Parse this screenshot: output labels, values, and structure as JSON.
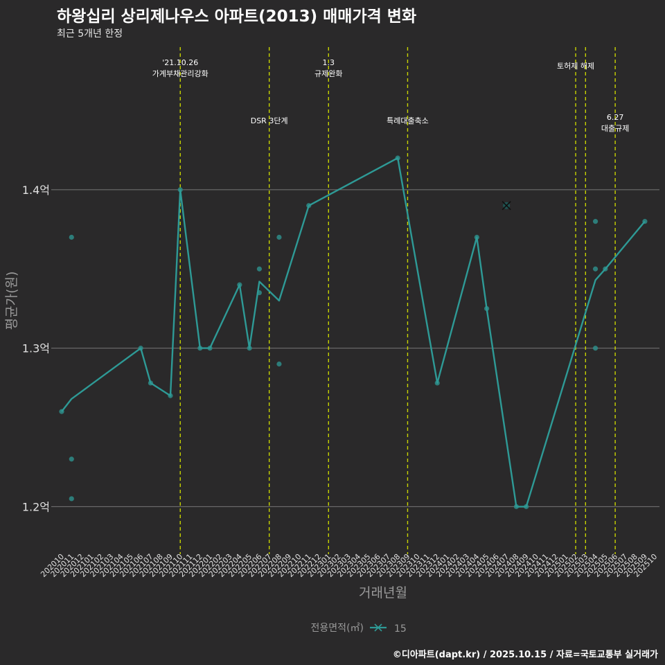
{
  "title": "하왕십리 상리제나우스 아파트(2013) 매매가격 변화",
  "subtitle": "최근 5개년 한정",
  "caption": "©디아파트(dapt.kr) / 2025.10.15 / 자료=국토교통부 실거래가",
  "colors": {
    "background": "#2a292a",
    "line": "#2e9a96",
    "point": "#2e8c88",
    "event_line": "#c8d400",
    "grid": "#777777",
    "text": "#e0e0e0",
    "axis_title": "#9a9a9a"
  },
  "chart_data": {
    "type": "line",
    "title": "하왕십리 상리제나우스 아파트(2013) 매매가격 변화",
    "xlabel": "거래년월",
    "ylabel": "평균가(원)",
    "categories": [
      "202010",
      "202011",
      "202012",
      "202101",
      "202102",
      "202103",
      "202104",
      "202105",
      "202106",
      "202107",
      "202108",
      "202109",
      "202110",
      "202111",
      "202112",
      "202201",
      "202202",
      "202203",
      "202204",
      "202205",
      "202206",
      "202207",
      "202208",
      "202209",
      "202210",
      "202211",
      "202212",
      "202301",
      "202302",
      "202303",
      "202304",
      "202305",
      "202306",
      "202307",
      "202308",
      "202309",
      "202310",
      "202311",
      "202312",
      "202401",
      "202402",
      "202403",
      "202404",
      "202405",
      "202406",
      "202407",
      "202408",
      "202409",
      "202410",
      "202411",
      "202412",
      "202501",
      "202502",
      "202503",
      "202504",
      "202505",
      "202506",
      "202507",
      "202508",
      "202509",
      "202510"
    ],
    "ylim": [
      1.17,
      1.49
    ],
    "yticks": [
      1.2,
      1.3,
      1.4
    ],
    "ytick_labels": [
      "1.2억",
      "1.3억",
      "1.4억"
    ],
    "series": [
      {
        "name": "15",
        "line_points": [
          {
            "x": "202010",
            "y": 1.26
          },
          {
            "x": "202011",
            "y": 1.268
          },
          {
            "x": "202106",
            "y": 1.3
          },
          {
            "x": "202107",
            "y": 1.278
          },
          {
            "x": "202109",
            "y": 1.27
          },
          {
            "x": "202110",
            "y": 1.4
          },
          {
            "x": "202112",
            "y": 1.3
          },
          {
            "x": "202201",
            "y": 1.3
          },
          {
            "x": "202204",
            "y": 1.34
          },
          {
            "x": "202205",
            "y": 1.3
          },
          {
            "x": "202206",
            "y": 1.342
          },
          {
            "x": "202208",
            "y": 1.33
          },
          {
            "x": "202211",
            "y": 1.39
          },
          {
            "x": "202308",
            "y": 1.42
          },
          {
            "x": "202312",
            "y": 1.278
          },
          {
            "x": "202404",
            "y": 1.37
          },
          {
            "x": "202405",
            "y": 1.325
          },
          {
            "x": "202408",
            "y": 1.2
          },
          {
            "x": "202409",
            "y": 1.2
          },
          {
            "x": "202504",
            "y": 1.343
          },
          {
            "x": "202505",
            "y": 1.35
          },
          {
            "x": "202509",
            "y": 1.38
          }
        ],
        "scatter_points": [
          {
            "x": "202010",
            "y": 1.26
          },
          {
            "x": "202011",
            "y": 1.37
          },
          {
            "x": "202011",
            "y": 1.23
          },
          {
            "x": "202011",
            "y": 1.205
          },
          {
            "x": "202106",
            "y": 1.3
          },
          {
            "x": "202107",
            "y": 1.278
          },
          {
            "x": "202109",
            "y": 1.27
          },
          {
            "x": "202110",
            "y": 1.4
          },
          {
            "x": "202112",
            "y": 1.3
          },
          {
            "x": "202201",
            "y": 1.3
          },
          {
            "x": "202204",
            "y": 1.34
          },
          {
            "x": "202205",
            "y": 1.3
          },
          {
            "x": "202206",
            "y": 1.35
          },
          {
            "x": "202206",
            "y": 1.335
          },
          {
            "x": "202208",
            "y": 1.37
          },
          {
            "x": "202208",
            "y": 1.29
          },
          {
            "x": "202211",
            "y": 1.39
          },
          {
            "x": "202308",
            "y": 1.42
          },
          {
            "x": "202312",
            "y": 1.278
          },
          {
            "x": "202404",
            "y": 1.37
          },
          {
            "x": "202405",
            "y": 1.325
          },
          {
            "x": "202408",
            "y": 1.2
          },
          {
            "x": "202409",
            "y": 1.2
          },
          {
            "x": "202504",
            "y": 1.38
          },
          {
            "x": "202504",
            "y": 1.35
          },
          {
            "x": "202504",
            "y": 1.3
          },
          {
            "x": "202505",
            "y": 1.35
          },
          {
            "x": "202509",
            "y": 1.38
          }
        ],
        "marker_points": [
          {
            "x": "202407",
            "y": 1.39
          }
        ]
      }
    ],
    "events": [
      {
        "x": "202110",
        "lines": [
          "'21.10.26",
          "가계부채관리강화"
        ],
        "row": 1
      },
      {
        "x": "202207",
        "lines": [
          "DSR 3단계"
        ],
        "row": 2
      },
      {
        "x": "202301",
        "lines": [
          "1.3",
          "규제완화"
        ],
        "row": 1
      },
      {
        "x": "202309",
        "lines": [
          "특례대출축소"
        ],
        "row": 2
      },
      {
        "x": "202502",
        "lines": [
          "토허제 해제"
        ],
        "row": 1
      },
      {
        "x": "202503",
        "lines": [],
        "row": 1
      },
      {
        "x": "202506",
        "lines": [
          "6.27",
          "대출규제"
        ],
        "row": 2
      }
    ],
    "legend": {
      "title": "전용면적(㎡)",
      "items": [
        "15"
      ],
      "position": "bottom"
    }
  }
}
